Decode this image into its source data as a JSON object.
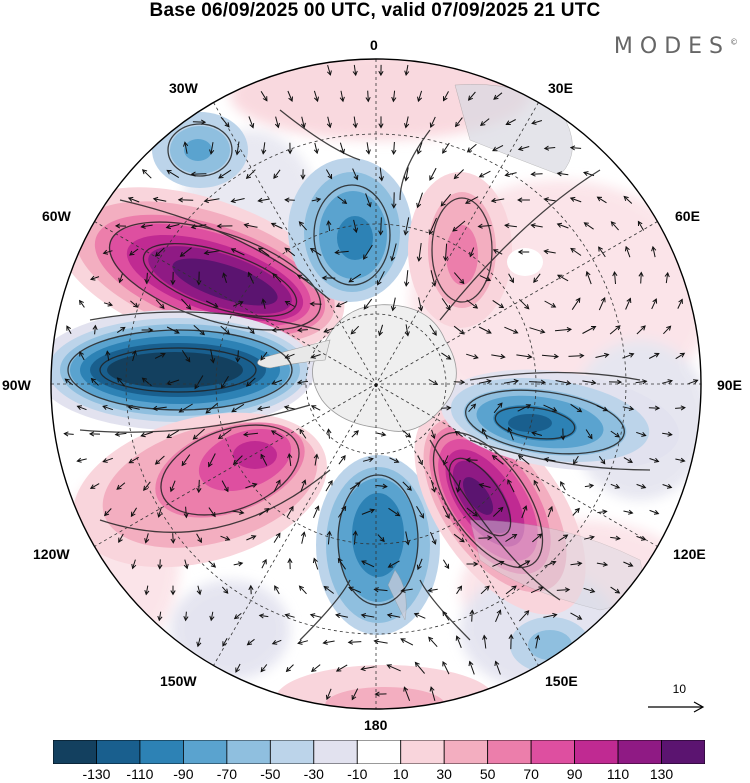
{
  "title": "Base 06/09/2025 00 UTC, valid 07/09/2025 21 UTC",
  "brand": "MODES",
  "brand_mark": "©",
  "longitude_labels": {
    "lon_0": "0",
    "lon_30e": "30E",
    "lon_60e": "60E",
    "lon_90e": "90E",
    "lon_120e": "120E",
    "lon_150e": "150E",
    "lon_180": "180",
    "lon_150w": "150W",
    "lon_120w": "120W",
    "lon_90w": "90W",
    "lon_60w": "60W",
    "lon_30w": "30W"
  },
  "reference_vector": {
    "label": "10"
  },
  "colorbar": {
    "tick_labels": [
      "-130",
      "-110",
      "-90",
      "-70",
      "-50",
      "-30",
      "-10",
      "10",
      "30",
      "50",
      "70",
      "90",
      "110",
      "130"
    ],
    "colors": [
      "#13405f",
      "#195f8e",
      "#2d82b5",
      "#5aa3cf",
      "#8fbfdf",
      "#bcd4ea",
      "#e2e2ef",
      "#ffffff",
      "#f9d5dc",
      "#f3aec0",
      "#ec7eab",
      "#de4fa0",
      "#c02a92",
      "#8f1a84",
      "#5b1470"
    ]
  },
  "anomaly_centres": [
    {
      "sign": "negative",
      "level": -130,
      "lon_label": "90W"
    },
    {
      "sign": "positive",
      "level": 130,
      "lon_label": "60W"
    },
    {
      "sign": "positive",
      "level": 90,
      "lon_label": "120W"
    },
    {
      "sign": "negative",
      "level": -70,
      "lon_label": "180"
    },
    {
      "sign": "positive",
      "level": 130,
      "lon_label": "120E"
    },
    {
      "sign": "negative",
      "level": -110,
      "lon_label": "90E"
    },
    {
      "sign": "negative",
      "level": -70,
      "lon_label": "0"
    },
    {
      "sign": "positive",
      "level": 50,
      "lon_label": "30E"
    },
    {
      "sign": "negative",
      "level": -50,
      "lon_label": "30W"
    },
    {
      "sign": "negative",
      "level": -50,
      "lon_label": "150E"
    },
    {
      "sign": "positive",
      "level": 30,
      "lon_label": "180"
    }
  ]
}
